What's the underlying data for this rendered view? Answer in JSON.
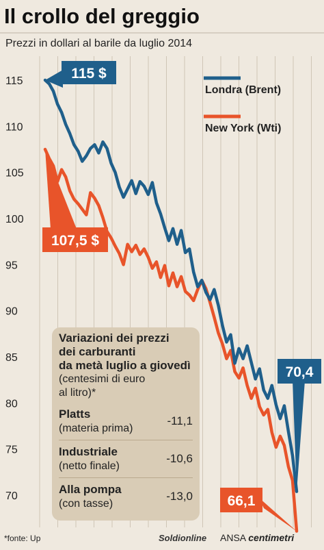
{
  "chart_data": {
    "type": "line",
    "title": "Il crollo del greggio",
    "subtitle": "Prezzi in dollari al barile da luglio 2014",
    "xlabel": "",
    "ylabel": "",
    "ylim": [
      68,
      117
    ],
    "yticks": [
      "115",
      "110",
      "105",
      "100",
      "95",
      "90",
      "85",
      "80",
      "75",
      "70"
    ],
    "legend_position": "top-right",
    "grid": "vertical-only",
    "series": [
      {
        "name": "Londra (Brent)",
        "color": "#1f5f8b",
        "values": [
          115.0,
          114.6,
          113.8,
          112.4,
          111.5,
          110.2,
          109.2,
          108.0,
          107.3,
          106.2,
          106.8,
          107.6,
          108.0,
          107.1,
          108.3,
          107.6,
          106.0,
          105.0,
          103.4,
          102.3,
          103.2,
          104.1,
          102.7,
          104.0,
          103.5,
          102.6,
          103.9,
          101.7,
          100.5,
          99.0,
          97.6,
          98.9,
          97.2,
          98.7,
          96.3,
          96.7,
          94.2,
          92.6,
          93.3,
          92.0,
          91.2,
          92.3,
          90.6,
          88.4,
          86.6,
          87.4,
          84.3,
          85.9,
          84.8,
          86.2,
          84.4,
          82.6,
          83.7,
          81.4,
          80.5,
          81.9,
          79.8,
          78.3,
          79.7,
          76.9,
          74.3,
          70.4
        ],
        "label": "115 $",
        "end_label": "70,4"
      },
      {
        "name": "New York (Wti)",
        "color": "#e8542a",
        "values": [
          107.5,
          106.5,
          105.7,
          104.0,
          105.3,
          104.5,
          103.0,
          102.1,
          101.6,
          101.0,
          100.4,
          102.8,
          102.2,
          101.4,
          100.1,
          98.6,
          97.9,
          97.0,
          96.2,
          95.0,
          97.2,
          96.4,
          97.1,
          96.1,
          96.7,
          95.8,
          94.6,
          95.3,
          93.6,
          94.9,
          92.7,
          94.1,
          92.6,
          93.7,
          92.1,
          91.7,
          91.1,
          92.3,
          93.3,
          92.4,
          90.9,
          89.3,
          87.6,
          86.4,
          84.8,
          85.7,
          83.4,
          82.7,
          83.8,
          81.9,
          80.5,
          81.6,
          79.6,
          78.7,
          79.3,
          76.8,
          75.2,
          76.4,
          75.4,
          73.1,
          71.6,
          66.1
        ],
        "label": "107,5 $",
        "end_label": "66,1"
      }
    ]
  },
  "box": {
    "title_lines": [
      "Variazioni dei prezzi",
      "dei carburanti",
      "da metà luglio a giovedì"
    ],
    "subtitle_lines": [
      "(centesimi di euro",
      "al litro)*"
    ],
    "rows": [
      {
        "name": "Platts",
        "desc": "(materia prima)",
        "value": "-11,1"
      },
      {
        "name": "Industriale",
        "desc": "(netto finale)",
        "value": "-10,6"
      },
      {
        "name": "Alla pompa",
        "desc": "(con tasse)",
        "value": "-13,0"
      }
    ]
  },
  "footer": {
    "source": "*fonte: Up",
    "credit_soldi": "Soldionline",
    "credit_ansa": "ANSA",
    "credit_centimetri": "centimetri"
  }
}
